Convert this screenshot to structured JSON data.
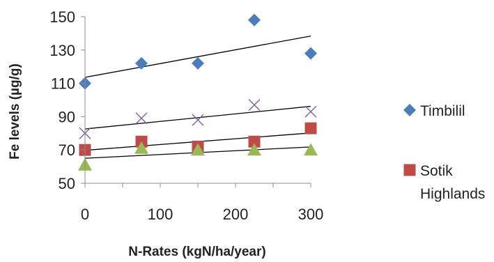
{
  "chart_data": {
    "type": "scatter",
    "xlabel": "N-Rates (kgN/ha/year)",
    "ylabel": "Fe levels (µg/g)",
    "xlim": [
      0,
      300
    ],
    "ylim": [
      50,
      150
    ],
    "x_ticks": [
      "0",
      "100",
      "200",
      "300"
    ],
    "y_ticks": [
      "50",
      "70",
      "90",
      "110",
      "130",
      "150"
    ],
    "grid": false,
    "legend_position": "right",
    "trendlines": true,
    "series": [
      {
        "name": "Timbilil",
        "marker": "diamond",
        "color": "#4a7ebb",
        "x": [
          0,
          75,
          150,
          225,
          300
        ],
        "y": [
          110,
          122,
          122,
          148,
          128
        ]
      },
      {
        "name": "Sotik Highlands",
        "marker": "square",
        "color": "#be4b48",
        "x": [
          0,
          75,
          150,
          225,
          300
        ],
        "y": [
          70,
          75,
          72,
          75,
          83
        ]
      },
      {
        "name": "",
        "marker": "triangle",
        "color": "#98b954",
        "x": [
          0,
          75,
          150,
          225,
          300
        ],
        "y": [
          61,
          71,
          70,
          70,
          70
        ]
      },
      {
        "name": "",
        "marker": "x",
        "color": "#7d60a0",
        "x": [
          0,
          75,
          150,
          225,
          300
        ],
        "y": [
          80,
          89,
          88,
          97,
          93
        ]
      }
    ],
    "legend": [
      {
        "label_lines": [
          "Timbilil"
        ],
        "marker": "diamond",
        "color": "#4a7ebb"
      },
      {
        "label_lines": [
          "Sotik",
          "Highlands"
        ],
        "marker": "square",
        "color": "#be4b48"
      }
    ]
  }
}
